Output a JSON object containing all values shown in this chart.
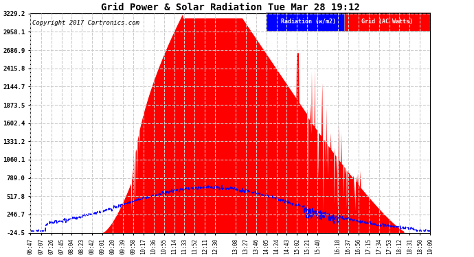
{
  "title": "Grid Power & Solar Radiation Tue Mar 28 19:12",
  "copyright": "Copyright 2017 Cartronics.com",
  "bg_color": "#ffffff",
  "plot_bg_color": "#ffffff",
  "grid_color": "#cccccc",
  "yticks": [
    3229.2,
    2958.1,
    2686.9,
    2415.8,
    2144.7,
    1873.5,
    1602.4,
    1331.2,
    1060.1,
    789.0,
    517.8,
    246.7,
    -24.5
  ],
  "ymin": -24.5,
  "ymax": 3229.2,
  "red_fill_color": "#ff0000",
  "blue_line_color": "#0000ff",
  "legend_radiation_label": "Radiation (w/m2)",
  "legend_grid_label": "Grid (AC Watts)",
  "legend_radiation_bg": "#0000ff",
  "legend_grid_bg": "#ff0000",
  "xtick_labels": [
    "06:47",
    "07:07",
    "07:26",
    "07:45",
    "08:04",
    "08:23",
    "08:42",
    "09:01",
    "09:20",
    "09:39",
    "09:58",
    "10:17",
    "10:36",
    "10:55",
    "11:14",
    "11:33",
    "11:52",
    "12:11",
    "12:30",
    "13:08",
    "13:27",
    "13:46",
    "14:05",
    "14:24",
    "14:43",
    "15:02",
    "15:21",
    "15:40",
    "16:18",
    "16:37",
    "16:56",
    "17:15",
    "17:34",
    "17:53",
    "18:12",
    "18:31",
    "18:50",
    "19:09"
  ]
}
